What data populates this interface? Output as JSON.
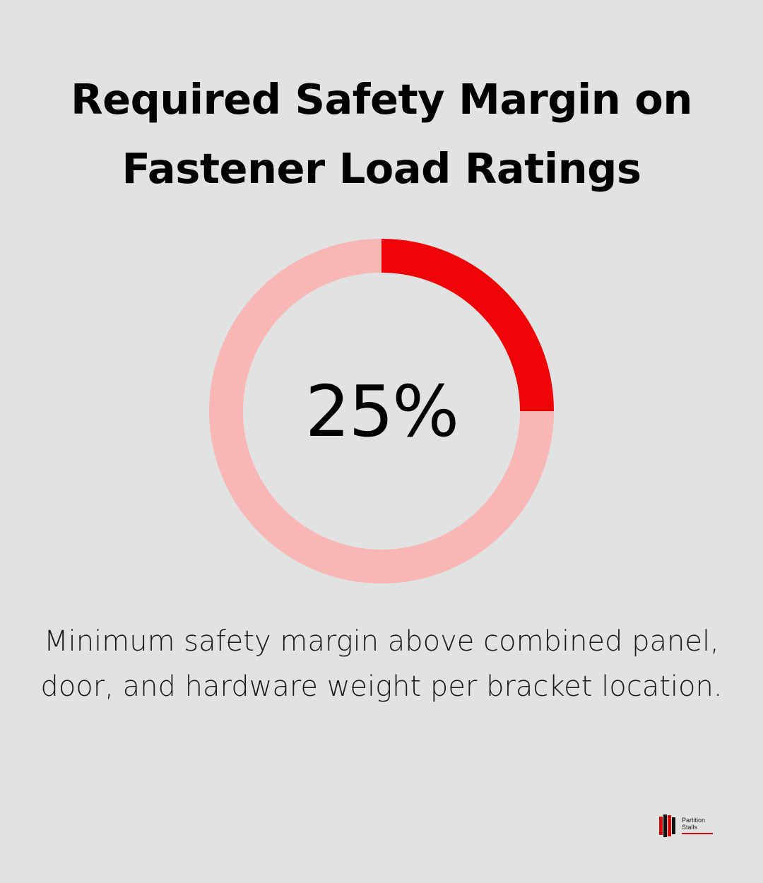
{
  "title": "Required Safety Margin on Fastener Load Ratings",
  "caption": "Minimum safety margin above combined panel, door, and hardware weight per bracket location.",
  "colors": {
    "background": "#e1e2e2",
    "accent": "#ef0507",
    "track": "#f8b6b5",
    "text": "#000000"
  },
  "chart_data": {
    "type": "pie",
    "style": "donut",
    "values": [
      25,
      75
    ],
    "value_label": "25%",
    "unit": "%"
  },
  "logo": {
    "line1": "Partition",
    "line2": "Stalls"
  }
}
